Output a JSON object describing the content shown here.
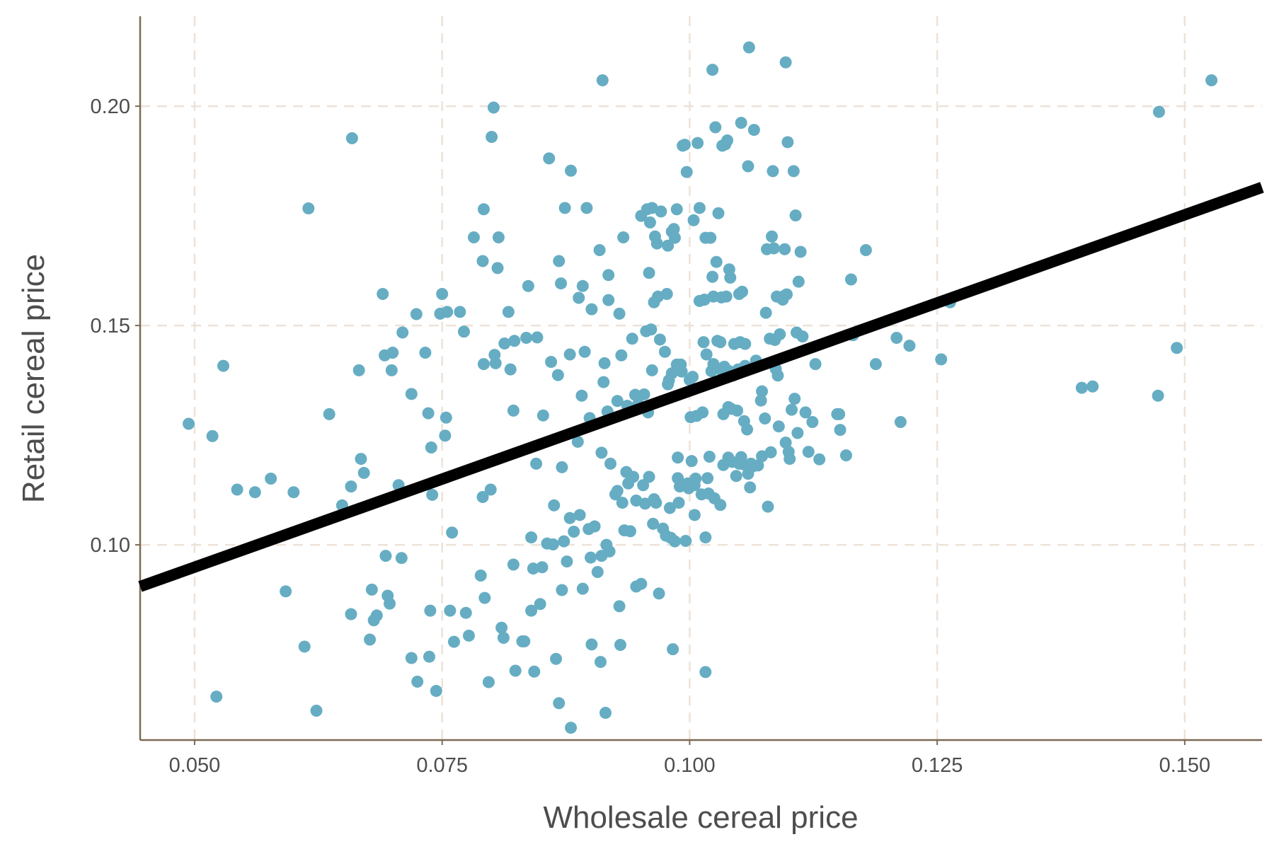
{
  "chart_data": {
    "type": "scatter",
    "xlabel": "Wholesale cereal price",
    "ylabel": "Retail cereal price",
    "xlim": [
      0.0445,
      0.1578
    ],
    "ylim": [
      0.0555,
      0.2205
    ],
    "x_ticks": [
      "0.050",
      "0.075",
      "0.100",
      "0.125",
      "0.150"
    ],
    "y_ticks": [
      "0.10",
      "0.15",
      "0.20"
    ],
    "x_tick_values": [
      0.05,
      0.075,
      0.1,
      0.125,
      0.15
    ],
    "y_tick_values": [
      0.1,
      0.15,
      0.2
    ],
    "grid": true,
    "fit_line": {
      "x": [
        0.0445,
        0.1578
      ],
      "y": [
        0.0905,
        0.1815
      ],
      "color": "#000000"
    },
    "point_color": "#66adc3",
    "points": [
      [
        0.0494,
        0.1276
      ],
      [
        0.0518,
        0.1248
      ],
      [
        0.0522,
        0.0654
      ],
      [
        0.0529,
        0.1408
      ],
      [
        0.0543,
        0.1126
      ],
      [
        0.0561,
        0.112
      ],
      [
        0.0577,
        0.1151
      ],
      [
        0.0592,
        0.0894
      ],
      [
        0.06,
        0.112
      ],
      [
        0.0611,
        0.0768
      ],
      [
        0.0615,
        0.1767
      ],
      [
        0.0623,
        0.0622
      ],
      [
        0.0636,
        0.1298
      ],
      [
        0.0649,
        0.109
      ],
      [
        0.0658,
        0.1133
      ],
      [
        0.0659,
        0.1927
      ],
      [
        0.0658,
        0.0842
      ],
      [
        0.0666,
        0.1398
      ],
      [
        0.0668,
        0.1196
      ],
      [
        0.0671,
        0.1164
      ],
      [
        0.0677,
        0.0784
      ],
      [
        0.0679,
        0.0898
      ],
      [
        0.0681,
        0.0828
      ],
      [
        0.0684,
        0.0839
      ],
      [
        0.069,
        0.1572
      ],
      [
        0.0692,
        0.1432
      ],
      [
        0.0693,
        0.0975
      ],
      [
        0.0695,
        0.0884
      ],
      [
        0.0697,
        0.0866
      ],
      [
        0.0699,
        0.1398
      ],
      [
        0.07,
        0.1438
      ],
      [
        0.0706,
        0.1136
      ],
      [
        0.0709,
        0.097
      ],
      [
        0.071,
        0.1484
      ],
      [
        0.0719,
        0.0742
      ],
      [
        0.0719,
        0.1344
      ],
      [
        0.0724,
        0.1526
      ],
      [
        0.0725,
        0.0688
      ],
      [
        0.0733,
        0.1438
      ],
      [
        0.0736,
        0.13
      ],
      [
        0.0737,
        0.0745
      ],
      [
        0.0738,
        0.085
      ],
      [
        0.074,
        0.1114
      ],
      [
        0.0739,
        0.1222
      ],
      [
        0.0744,
        0.0667
      ],
      [
        0.0748,
        0.1527
      ],
      [
        0.075,
        0.1572
      ],
      [
        0.0753,
        0.1249
      ],
      [
        0.0754,
        0.129
      ],
      [
        0.0755,
        0.1531
      ],
      [
        0.0758,
        0.085
      ],
      [
        0.076,
        0.1028
      ],
      [
        0.0762,
        0.0779
      ],
      [
        0.0768,
        0.1531
      ],
      [
        0.0772,
        0.1486
      ],
      [
        0.0774,
        0.0845
      ],
      [
        0.0777,
        0.0793
      ],
      [
        0.0782,
        0.1701
      ],
      [
        0.0789,
        0.093
      ],
      [
        0.0791,
        0.1647
      ],
      [
        0.0791,
        0.1109
      ],
      [
        0.0792,
        0.1412
      ],
      [
        0.0792,
        0.1765
      ],
      [
        0.0793,
        0.0879
      ],
      [
        0.0797,
        0.0687
      ],
      [
        0.0799,
        0.1126
      ],
      [
        0.08,
        0.193
      ],
      [
        0.0803,
        0.1433
      ],
      [
        0.0802,
        0.1997
      ],
      [
        0.0804,
        0.1414
      ],
      [
        0.0806,
        0.1631
      ],
      [
        0.0807,
        0.1701
      ],
      [
        0.081,
        0.0811
      ],
      [
        0.0812,
        0.0788
      ],
      [
        0.0813,
        0.1459
      ],
      [
        0.0817,
        0.1531
      ],
      [
        0.0819,
        0.14
      ],
      [
        0.0822,
        0.0955
      ],
      [
        0.0822,
        0.1306
      ],
      [
        0.0823,
        0.1465
      ],
      [
        0.0824,
        0.0713
      ],
      [
        0.0831,
        0.078
      ],
      [
        0.0833,
        0.078
      ],
      [
        0.0835,
        0.1472
      ],
      [
        0.0837,
        0.159
      ],
      [
        0.084,
        0.1017
      ],
      [
        0.084,
        0.085
      ],
      [
        0.0842,
        0.0946
      ],
      [
        0.0843,
        0.0711
      ],
      [
        0.0845,
        0.1185
      ],
      [
        0.0846,
        0.1473
      ],
      [
        0.0849,
        0.0865
      ],
      [
        0.0851,
        0.0949
      ],
      [
        0.0852,
        0.1295
      ],
      [
        0.0856,
        0.1003
      ],
      [
        0.0858,
        0.1881
      ],
      [
        0.086,
        0.1417
      ],
      [
        0.0862,
        0.1001
      ],
      [
        0.0863,
        0.109
      ],
      [
        0.0865,
        0.074
      ],
      [
        0.0867,
        0.1387
      ],
      [
        0.0868,
        0.0639
      ],
      [
        0.0868,
        0.1647
      ],
      [
        0.087,
        0.1596
      ],
      [
        0.0871,
        0.0897
      ],
      [
        0.0871,
        0.1177
      ],
      [
        0.0873,
        0.1008
      ],
      [
        0.0874,
        0.1768
      ],
      [
        0.0876,
        0.0962
      ],
      [
        0.0879,
        0.1434
      ],
      [
        0.0879,
        0.1061
      ],
      [
        0.088,
        0.0583
      ],
      [
        0.088,
        0.1853
      ],
      [
        0.0883,
        0.103
      ],
      [
        0.0887,
        0.1235
      ],
      [
        0.0888,
        0.1563
      ],
      [
        0.0889,
        0.1068
      ],
      [
        0.0891,
        0.134
      ],
      [
        0.0892,
        0.09
      ],
      [
        0.0892,
        0.159
      ],
      [
        0.0894,
        0.144
      ],
      [
        0.0896,
        0.1768
      ],
      [
        0.0898,
        0.1036
      ],
      [
        0.0899,
        0.1289
      ],
      [
        0.09,
        0.0971
      ],
      [
        0.0901,
        0.1537
      ],
      [
        0.0901,
        0.0773
      ],
      [
        0.0904,
        0.1042
      ],
      [
        0.0907,
        0.0938
      ],
      [
        0.0909,
        0.1672
      ],
      [
        0.091,
        0.0733
      ],
      [
        0.0911,
        0.0975
      ],
      [
        0.0911,
        0.121
      ],
      [
        0.0912,
        0.2059
      ],
      [
        0.0913,
        0.1371
      ],
      [
        0.0914,
        0.1414
      ],
      [
        0.0915,
        0.0617
      ],
      [
        0.0916,
        0.1
      ],
      [
        0.0917,
        0.1304
      ],
      [
        0.0918,
        0.1558
      ],
      [
        0.0918,
        0.1615
      ],
      [
        0.0919,
        0.0985
      ],
      [
        0.092,
        0.1185
      ],
      [
        0.0925,
        0.1115
      ],
      [
        0.0927,
        0.1123
      ],
      [
        0.0927,
        0.1328
      ],
      [
        0.0929,
        0.086
      ],
      [
        0.0929,
        0.1527
      ],
      [
        0.093,
        0.0772
      ],
      [
        0.0931,
        0.1432
      ],
      [
        0.0932,
        0.1096
      ],
      [
        0.0933,
        0.1701
      ],
      [
        0.0934,
        0.1033
      ],
      [
        0.0936,
        0.1166
      ],
      [
        0.0937,
        0.1317
      ],
      [
        0.0938,
        0.114
      ],
      [
        0.094,
        0.1031
      ],
      [
        0.0942,
        0.147
      ],
      [
        0.0943,
        0.1155
      ],
      [
        0.0945,
        0.1342
      ],
      [
        0.0946,
        0.0905
      ],
      [
        0.0946,
        0.1101
      ],
      [
        0.0948,
        0.1321
      ],
      [
        0.0951,
        0.175
      ],
      [
        0.0951,
        0.0911
      ],
      [
        0.0953,
        0.1136
      ],
      [
        0.0955,
        0.1094
      ],
      [
        0.0954,
        0.1343
      ],
      [
        0.0956,
        0.1487
      ],
      [
        0.0957,
        0.1765
      ],
      [
        0.0958,
        0.1302
      ],
      [
        0.0959,
        0.1155
      ],
      [
        0.0959,
        0.162
      ],
      [
        0.096,
        0.1735
      ],
      [
        0.0961,
        0.1491
      ],
      [
        0.0962,
        0.1768
      ],
      [
        0.0962,
        0.1398
      ],
      [
        0.0963,
        0.1048
      ],
      [
        0.0964,
        0.1553
      ],
      [
        0.0964,
        0.1104
      ],
      [
        0.0965,
        0.1703
      ],
      [
        0.0966,
        0.1096
      ],
      [
        0.0967,
        0.1687
      ],
      [
        0.0968,
        0.1566
      ],
      [
        0.0969,
        0.0889
      ],
      [
        0.097,
        0.1468
      ],
      [
        0.0971,
        0.176
      ],
      [
        0.0973,
        0.1037
      ],
      [
        0.0975,
        0.144
      ],
      [
        0.0976,
        0.1021
      ],
      [
        0.0977,
        0.1572
      ],
      [
        0.0978,
        0.1366
      ],
      [
        0.0978,
        0.1682
      ],
      [
        0.0979,
        0.1375
      ],
      [
        0.098,
        0.1084
      ],
      [
        0.0981,
        0.1016
      ],
      [
        0.0982,
        0.1391
      ],
      [
        0.0982,
        0.1714
      ],
      [
        0.0983,
        0.0762
      ],
      [
        0.0984,
        0.172
      ],
      [
        0.0985,
        0.1008
      ],
      [
        0.0985,
        0.17
      ],
      [
        0.0987,
        0.1411
      ],
      [
        0.0987,
        0.1765
      ],
      [
        0.0988,
        0.1199
      ],
      [
        0.0988,
        0.1152
      ],
      [
        0.0989,
        0.1096
      ],
      [
        0.099,
        0.1133
      ],
      [
        0.0991,
        0.1411
      ],
      [
        0.0992,
        0.1395
      ],
      [
        0.0993,
        0.191
      ],
      [
        0.0995,
        0.1912
      ],
      [
        0.0996,
        0.1009
      ],
      [
        0.0997,
        0.185
      ],
      [
        0.0998,
        0.114
      ],
      [
        0.0999,
        0.1129
      ],
      [
        0.1,
        0.1376
      ],
      [
        0.1001,
        0.1291
      ],
      [
        0.1002,
        0.1191
      ],
      [
        0.1003,
        0.1383
      ],
      [
        0.1004,
        0.174
      ],
      [
        0.1005,
        0.1136
      ],
      [
        0.1005,
        0.1068
      ],
      [
        0.1006,
        0.1151
      ],
      [
        0.1007,
        0.1294
      ],
      [
        0.1008,
        0.1916
      ],
      [
        0.101,
        0.1768
      ],
      [
        0.101,
        0.1556
      ],
      [
        0.1012,
        0.1115
      ],
      [
        0.1013,
        0.1302
      ],
      [
        0.1014,
        0.1462
      ],
      [
        0.1015,
        0.1559
      ],
      [
        0.1016,
        0.1017
      ],
      [
        0.1016,
        0.17
      ],
      [
        0.1016,
        0.071
      ],
      [
        0.1017,
        0.1434
      ],
      [
        0.1018,
        0.1152
      ],
      [
        0.1019,
        0.1117
      ],
      [
        0.102,
        0.1201
      ],
      [
        0.1021,
        0.17
      ],
      [
        0.1022,
        0.1396
      ],
      [
        0.1023,
        0.1611
      ],
      [
        0.1023,
        0.2083
      ],
      [
        0.1024,
        0.1412
      ],
      [
        0.1024,
        0.1566
      ],
      [
        0.1025,
        0.1106
      ],
      [
        0.1026,
        0.1952
      ],
      [
        0.1027,
        0.1645
      ],
      [
        0.1028,
        0.1465
      ],
      [
        0.1029,
        0.1756
      ],
      [
        0.103,
        0.1401
      ],
      [
        0.1031,
        0.1091
      ],
      [
        0.1031,
        0.1462
      ],
      [
        0.1032,
        0.1564
      ],
      [
        0.1033,
        0.191
      ],
      [
        0.1034,
        0.1182
      ],
      [
        0.1034,
        0.1298
      ],
      [
        0.1035,
        0.1406
      ],
      [
        0.1036,
        0.1913
      ],
      [
        0.1037,
        0.1566
      ],
      [
        0.1038,
        0.1922
      ],
      [
        0.1039,
        0.1314
      ],
      [
        0.1039,
        0.1199
      ],
      [
        0.104,
        0.1628
      ],
      [
        0.104,
        0.1396
      ],
      [
        0.1041,
        0.1609
      ],
      [
        0.1042,
        0.131
      ],
      [
        0.1043,
        0.1189
      ],
      [
        0.1044,
        0.1386
      ],
      [
        0.1045,
        0.1458
      ],
      [
        0.1047,
        0.1157
      ],
      [
        0.1048,
        0.1306
      ],
      [
        0.1049,
        0.14
      ],
      [
        0.105,
        0.1572
      ],
      [
        0.105,
        0.1185
      ],
      [
        0.1051,
        0.1462
      ],
      [
        0.1052,
        0.12
      ],
      [
        0.1052,
        0.1962
      ],
      [
        0.1053,
        0.1577
      ],
      [
        0.1054,
        0.1184
      ],
      [
        0.1055,
        0.1282
      ],
      [
        0.1056,
        0.1458
      ],
      [
        0.1056,
        0.1408
      ],
      [
        0.1058,
        0.1263
      ],
      [
        0.1059,
        0.1162
      ],
      [
        0.1059,
        0.1863
      ],
      [
        0.106,
        0.2134
      ],
      [
        0.1061,
        0.1131
      ],
      [
        0.1062,
        0.1185
      ],
      [
        0.1064,
        0.1179
      ],
      [
        0.1065,
        0.1946
      ],
      [
        0.1067,
        0.142
      ],
      [
        0.1069,
        0.1181
      ],
      [
        0.1072,
        0.1329
      ],
      [
        0.1073,
        0.135
      ],
      [
        0.1073,
        0.1202
      ],
      [
        0.1076,
        0.1288
      ],
      [
        0.1077,
        0.1529
      ],
      [
        0.1078,
        0.1674
      ],
      [
        0.1079,
        0.1087
      ],
      [
        0.1081,
        0.147
      ],
      [
        0.1082,
        0.1211
      ],
      [
        0.1083,
        0.1703
      ],
      [
        0.1084,
        0.1852
      ],
      [
        0.1085,
        0.1676
      ],
      [
        0.1086,
        0.1467
      ],
      [
        0.1087,
        0.1401
      ],
      [
        0.1088,
        0.1566
      ],
      [
        0.1089,
        0.1386
      ],
      [
        0.109,
        0.127
      ],
      [
        0.1091,
        0.148
      ],
      [
        0.1094,
        0.1559
      ],
      [
        0.1095,
        0.1567
      ],
      [
        0.1096,
        0.1674
      ],
      [
        0.1097,
        0.21
      ],
      [
        0.1097,
        0.1233
      ],
      [
        0.1098,
        0.1571
      ],
      [
        0.1099,
        0.1918
      ],
      [
        0.11,
        0.1212
      ],
      [
        0.1101,
        0.1196
      ],
      [
        0.1103,
        0.1308
      ],
      [
        0.1105,
        0.1852
      ],
      [
        0.1106,
        0.1333
      ],
      [
        0.1107,
        0.1751
      ],
      [
        0.1108,
        0.1484
      ],
      [
        0.1109,
        0.1255
      ],
      [
        0.111,
        0.16
      ],
      [
        0.1112,
        0.1668
      ],
      [
        0.1114,
        0.1475
      ],
      [
        0.1117,
        0.1302
      ],
      [
        0.112,
        0.1212
      ],
      [
        0.1124,
        0.128
      ],
      [
        0.1127,
        0.1412
      ],
      [
        0.1131,
        0.1195
      ],
      [
        0.1149,
        0.1298
      ],
      [
        0.1151,
        0.1298
      ],
      [
        0.1152,
        0.1262
      ],
      [
        0.1158,
        0.1204
      ],
      [
        0.1163,
        0.1605
      ],
      [
        0.1165,
        0.1478
      ],
      [
        0.1178,
        0.1672
      ],
      [
        0.1188,
        0.1412
      ],
      [
        0.1209,
        0.1472
      ],
      [
        0.1213,
        0.128
      ],
      [
        0.1222,
        0.1454
      ],
      [
        0.1254,
        0.1423
      ],
      [
        0.1263,
        0.1553
      ],
      [
        0.1396,
        0.1358
      ],
      [
        0.1407,
        0.1361
      ],
      [
        0.1473,
        0.134
      ],
      [
        0.1474,
        0.1987
      ],
      [
        0.1492,
        0.1449
      ],
      [
        0.1527,
        0.2059
      ]
    ]
  }
}
